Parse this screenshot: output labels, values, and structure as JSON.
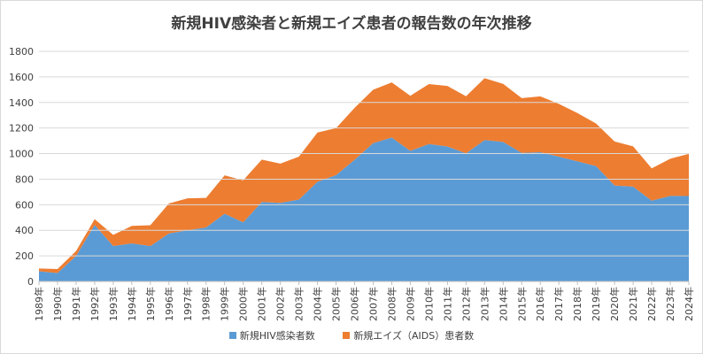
{
  "chart_data": {
    "type": "area",
    "title": "新規HIV感染者と新規エイズ患者の報告数の年次推移",
    "x": [
      "1989年",
      "1990年",
      "1991年",
      "1992年",
      "1993年",
      "1994年",
      "1995年",
      "1996年",
      "1997年",
      "1998年",
      "1999年",
      "2000年",
      "2001年",
      "2002年",
      "2003年",
      "2004年",
      "2005年",
      "2006年",
      "2007年",
      "2008年",
      "2009年",
      "2010年",
      "2011年",
      "2012年",
      "2013年",
      "2014年",
      "2015年",
      "2016年",
      "2017年",
      "2018年",
      "2019年",
      "2020年",
      "2021年",
      "2022年",
      "2023年",
      "2024年"
    ],
    "stacked": true,
    "series": [
      {
        "name": "新規HIV感染者数",
        "color": "#5b9bd5",
        "values": [
          80,
          66,
          200,
          442,
          277,
          298,
          277,
          376,
          400,
          422,
          530,
          462,
          621,
          614,
          640,
          780,
          832,
          952,
          1082,
          1126,
          1021,
          1075,
          1056,
          1002,
          1106,
          1091,
          1006,
          1011,
          976,
          940,
          903,
          750,
          742,
          632,
          669,
          668
        ]
      },
      {
        "name": "新規エイズ（AIDS）患者数",
        "color": "#ed7d31",
        "values": [
          21,
          31,
          38,
          45,
          87,
          136,
          163,
          234,
          250,
          231,
          300,
          329,
          332,
          308,
          336,
          385,
          367,
          406,
          418,
          431,
          431,
          469,
          473,
          447,
          484,
          455,
          428,
          437,
          413,
          377,
          333,
          345,
          315,
          252,
          291,
          330
        ]
      }
    ],
    "ylim": [
      0,
      1800
    ],
    "yticks": [
      0,
      200,
      400,
      600,
      800,
      1000,
      1200,
      1400,
      1600,
      1800
    ],
    "grid": true,
    "legend_position": "bottom"
  }
}
